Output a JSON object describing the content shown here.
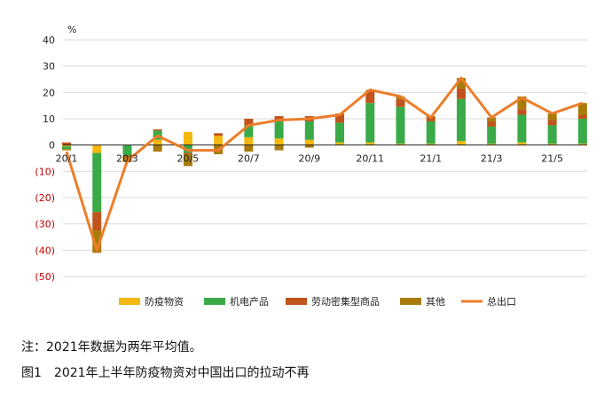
{
  "chart_data": {
    "type": "bar",
    "stacked": true,
    "unit_label": "%",
    "categories": [
      "20/1",
      "20/2",
      "20/3",
      "20/4",
      "20/5",
      "20/6",
      "20/7",
      "20/8",
      "20/9",
      "20/10",
      "20/11",
      "20/12",
      "21/1",
      "21/2",
      "21/3",
      "21/4",
      "21/5",
      "21/6"
    ],
    "x_tick_labels": [
      "20/1",
      "",
      "20/3",
      "",
      "20/5",
      "",
      "20/7",
      "",
      "20/9",
      "",
      "20/11",
      "",
      "21/1",
      "",
      "21/3",
      "",
      "21/5",
      ""
    ],
    "ylim": [
      -50,
      40
    ],
    "yticks": [
      40,
      30,
      20,
      10,
      0,
      -10,
      -20,
      -30,
      -40,
      -50
    ],
    "ytick_labels": [
      "40",
      "30",
      "20",
      "10",
      "0",
      "(10)",
      "(20)",
      "(30)",
      "(40)",
      "(50)"
    ],
    "grid": true,
    "legend_position": "bottom",
    "series": [
      {
        "name": "防疫物资",
        "color": "#f5b80f",
        "values": [
          -0.5,
          -3,
          0,
          2,
          5,
          3.5,
          3,
          2.5,
          2,
          1,
          1,
          0.5,
          0.5,
          1.5,
          0.5,
          1,
          0.5,
          0.5
        ]
      },
      {
        "name": "机电产品",
        "color": "#3aaa48",
        "values": [
          -1,
          -22.5,
          -4,
          3.5,
          -3,
          0,
          4.5,
          6.5,
          7,
          7.5,
          15,
          14,
          8.5,
          16,
          6.5,
          10.5,
          7,
          9.5
        ]
      },
      {
        "name": "劳动密集型商品",
        "color": "#c0541c",
        "values": [
          1,
          -7,
          -0.5,
          0.5,
          -0.5,
          1,
          2.5,
          2,
          2,
          3,
          4.5,
          3,
          1.5,
          4,
          2,
          2,
          2,
          1.5
        ]
      },
      {
        "name": "其他",
        "color": "#a87b0a",
        "values": [
          -0.5,
          -8.5,
          -2,
          -2.5,
          -4.5,
          -3.5,
          -2.5,
          -2,
          -1,
          0.5,
          0.5,
          1,
          0.5,
          4,
          1.5,
          5,
          2.5,
          4.5
        ]
      },
      {
        "name": "总出口",
        "type": "line",
        "color": "#ec7d2a",
        "values": [
          -2.5,
          -40,
          -6,
          3.5,
          -2,
          -2,
          7.5,
          9.5,
          10,
          11.5,
          21,
          18.5,
          10.5,
          25.5,
          10.5,
          18,
          12,
          16
        ]
      }
    ]
  },
  "caption": {
    "note": "注：2021年数据为两年平均值。",
    "figure_title": "图1　2021年上半年防疫物资对中国出口的拉动不再"
  }
}
